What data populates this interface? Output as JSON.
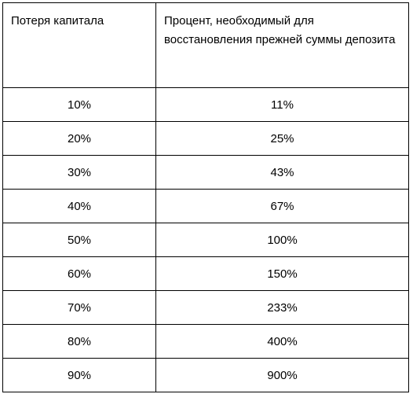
{
  "table": {
    "headers": [
      "Потеря капитала",
      "Процент, необходимый для восстановления прежней суммы депозита"
    ],
    "rows": [
      {
        "loss": "10%",
        "recovery": "11%"
      },
      {
        "loss": "20%",
        "recovery": "25%"
      },
      {
        "loss": "30%",
        "recovery": "43%"
      },
      {
        "loss": "40%",
        "recovery": "67%"
      },
      {
        "loss": "50%",
        "recovery": "100%"
      },
      {
        "loss": "60%",
        "recovery": "150%"
      },
      {
        "loss": "70%",
        "recovery": "233%"
      },
      {
        "loss": "80%",
        "recovery": "400%"
      },
      {
        "loss": "90%",
        "recovery": "900%"
      }
    ]
  }
}
